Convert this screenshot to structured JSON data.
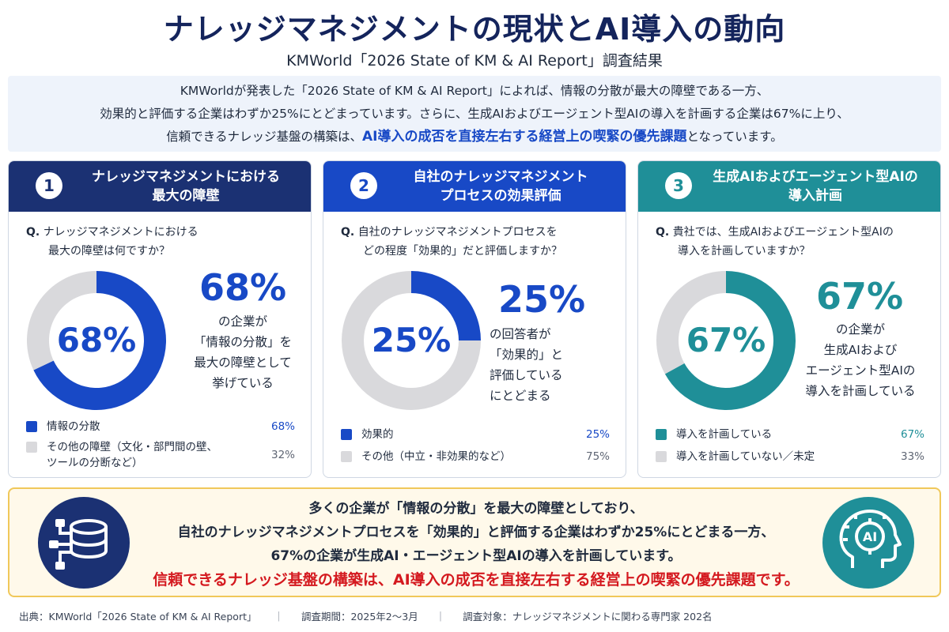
{
  "header": {
    "title": "ナレッジマネジメントの現状とAI導入の動向",
    "subtitle": "KMWorld「2026 State of KM & AI Report」調査結果"
  },
  "intro": {
    "line1": "KMWorldが発表した「2026 State of KM & AI Report」によれば、情報の分散が最大の障壁である一方、",
    "line2": "効果的と評価する企業はわずか25%にとどまっています。さらに、生成AIおよびエージェント型AIの導入を計画する企業は67%に上り、",
    "line3_pre": "信頼できるナレッジ基盤の構築は、",
    "line3_hl": "AI導入の成否を直接左右する経営上の喫緊の優先課題",
    "line3_post": "となっています。"
  },
  "colors": {
    "navy": "#1b3173",
    "blue": "#1849c6",
    "teal": "#1f8f98",
    "gray": "#d9d9dc",
    "red": "#d4191f"
  },
  "cards": [
    {
      "number": "1",
      "title_l1": "ナレッジマネジメントにおける",
      "title_l2": "最大の障壁",
      "q_mark": "Q.",
      "q_l1": "ナレッジマネジメントにおける",
      "q_l2": "最大の障壁は何ですか？",
      "center_pct": "68%",
      "big_pct": "68%",
      "desc": [
        "の企業が",
        "「情報の分散」を",
        "最大の障壁として",
        "挙げている"
      ],
      "legend": [
        {
          "label": "情報の分散",
          "value": "68%"
        },
        {
          "label_l1": "その他の障壁（文化・部門間の壁、",
          "label_l2": "ツールの分断など）",
          "value": "32%"
        }
      ]
    },
    {
      "number": "2",
      "title_l1": "自社のナレッジマネジメント",
      "title_l2": "プロセスの効果評価",
      "q_mark": "Q.",
      "q_l1": "自社のナレッジマネジメントプロセスを",
      "q_l2": "どの程度「効果的」だと評価しますか？",
      "center_pct": "25%",
      "big_pct": "25%",
      "desc": [
        "の回答者が",
        "「効果的」と",
        "評価している",
        "にとどまる"
      ],
      "legend": [
        {
          "label": "効果的",
          "value": "25%"
        },
        {
          "label": "その他（中立・非効果的など）",
          "value": "75%"
        }
      ]
    },
    {
      "number": "3",
      "title_l1": "生成AIおよびエージェント型AIの",
      "title_l2": "導入計画",
      "q_mark": "Q.",
      "q_l1": "貴社では、生成AIおよびエージェント型AIの",
      "q_l2": "導入を計画していますか？",
      "center_pct": "67%",
      "big_pct": "67%",
      "desc": [
        "の企業が",
        "生成AIおよび",
        "エージェント型AIの",
        "導入を計画している"
      ],
      "legend": [
        {
          "label": "導入を計画している",
          "value": "67%"
        },
        {
          "label": "導入を計画していない／未定",
          "value": "33%"
        }
      ]
    }
  ],
  "chart_data": [
    {
      "type": "pie",
      "categories": [
        "情報の分散",
        "その他の障壁（文化・部門間の壁、ツールの分断など）"
      ],
      "values": [
        68,
        32
      ],
      "colors": [
        "#1849c6",
        "#d9d9dc"
      ]
    },
    {
      "type": "pie",
      "categories": [
        "効果的",
        "その他（中立・非効果的など）"
      ],
      "values": [
        25,
        75
      ],
      "colors": [
        "#1849c6",
        "#d9d9dc"
      ]
    },
    {
      "type": "pie",
      "categories": [
        "導入を計画している",
        "導入を計画していない／未定"
      ],
      "values": [
        67,
        33
      ],
      "colors": [
        "#1f8f98",
        "#d9d9dc"
      ]
    }
  ],
  "summary": {
    "line1": "多くの企業が「情報の分散」を最大の障壁としており、",
    "line2": "自社のナレッジマネジメントプロセスを「効果的」と評価する企業はわずか25%にとどまる一方、",
    "line3": "67%の企業が生成AI・エージェント型AIの導入を計画しています。",
    "line4": "信頼できるナレッジ基盤の構築は、AI導入の成否を直接左右する経営上の喫緊の優先課題です。",
    "left_icon": "database-network-icon",
    "right_icon": "ai-head-icon",
    "ai_label": "AI"
  },
  "footer": {
    "source": "出典：KMWorld「2026 State of KM & AI Report」",
    "sep": "｜",
    "period": "調査期間：2025年2〜3月",
    "target": "調査対象：ナレッジマネジメントに関わる専門家 202名"
  }
}
